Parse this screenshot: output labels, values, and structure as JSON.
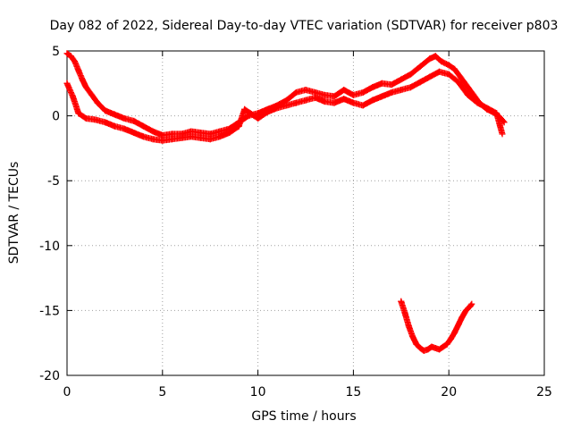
{
  "chart_data": {
    "type": "scatter",
    "title": "Day 082 of 2022, Sidereal Day-to-day VTEC variation (SDTVAR) for receiver p803",
    "xlabel": "GPS time / hours",
    "ylabel": "SDTVAR / TECUs",
    "xlim": [
      0,
      25
    ],
    "ylim": [
      -20,
      5
    ],
    "xticks": [
      0,
      5,
      10,
      15,
      20,
      25
    ],
    "yticks": [
      -20,
      -15,
      -10,
      -5,
      0,
      5
    ],
    "grid": true,
    "marker": "plus",
    "series": [
      {
        "name": "main-track-upper",
        "color": "#ff0000",
        "x": [
          0.0,
          0.2,
          0.4,
          0.6,
          0.8,
          1.0,
          1.3,
          1.6,
          2.0,
          2.5,
          3.0,
          3.5,
          4.0,
          4.5,
          5.0,
          5.5,
          6.0,
          6.5,
          7.0,
          7.5,
          8.0,
          8.5,
          9.0,
          9.5,
          10.0,
          10.5,
          11.0,
          11.5,
          12.0,
          12.5,
          13.0,
          13.5,
          14.0,
          14.5,
          15.0,
          15.5,
          16.0,
          16.5,
          17.0,
          17.5,
          18.0,
          18.5,
          19.0,
          19.3,
          19.6,
          20.0,
          20.3,
          20.6,
          21.0,
          21.3,
          21.6,
          22.0,
          22.3,
          22.6,
          22.9
        ],
        "y": [
          4.8,
          4.6,
          4.2,
          3.5,
          2.8,
          2.2,
          1.6,
          1.0,
          0.4,
          0.1,
          -0.2,
          -0.4,
          -0.8,
          -1.2,
          -1.5,
          -1.4,
          -1.4,
          -1.2,
          -1.3,
          -1.4,
          -1.2,
          -1.0,
          -0.5,
          0.0,
          0.2,
          0.5,
          0.8,
          1.2,
          1.8,
          2.0,
          1.8,
          1.6,
          1.5,
          2.0,
          1.6,
          1.8,
          2.2,
          2.5,
          2.4,
          2.8,
          3.2,
          3.8,
          4.4,
          4.6,
          4.2,
          3.9,
          3.6,
          3.0,
          2.2,
          1.6,
          1.0,
          0.5,
          0.3,
          0.0,
          -0.5
        ]
      },
      {
        "name": "main-track-lower",
        "color": "#ff0000",
        "x": [
          0.0,
          0.3,
          0.6,
          1.0,
          1.5,
          2.0,
          2.5,
          3.0,
          3.5,
          4.0,
          4.5,
          5.0,
          5.5,
          6.0,
          6.5,
          7.0,
          7.5,
          8.0,
          8.5,
          9.0,
          9.3,
          9.6,
          10.0,
          10.5,
          11.0,
          11.5,
          12.0,
          12.5,
          13.0,
          13.5,
          14.0,
          14.5,
          15.0,
          15.5,
          16.0,
          16.5,
          17.0,
          17.5,
          18.0,
          18.5,
          19.0,
          19.5,
          20.0,
          20.5,
          21.0,
          21.5,
          22.0,
          22.5,
          22.8
        ],
        "y": [
          2.5,
          1.5,
          0.2,
          -0.2,
          -0.3,
          -0.5,
          -0.8,
          -1.0,
          -1.3,
          -1.6,
          -1.8,
          -1.9,
          -1.8,
          -1.7,
          -1.6,
          -1.7,
          -1.8,
          -1.6,
          -1.3,
          -0.8,
          0.5,
          0.2,
          -0.2,
          0.3,
          0.6,
          0.8,
          1.0,
          1.2,
          1.4,
          1.1,
          1.0,
          1.3,
          1.0,
          0.8,
          1.2,
          1.5,
          1.8,
          2.0,
          2.2,
          2.6,
          3.0,
          3.4,
          3.2,
          2.6,
          1.6,
          1.0,
          0.6,
          0.2,
          -1.4
        ]
      },
      {
        "name": "anomaly-arc",
        "color": "#ff0000",
        "x": [
          17.5,
          17.7,
          17.9,
          18.1,
          18.3,
          18.5,
          18.7,
          18.9,
          19.1,
          19.3,
          19.5,
          19.7,
          19.9,
          20.1,
          20.3,
          20.5,
          20.7,
          20.9,
          21.1,
          21.2
        ],
        "y": [
          -14.3,
          -15.2,
          -16.2,
          -17.0,
          -17.6,
          -17.9,
          -18.1,
          -18.0,
          -17.8,
          -17.9,
          -18.0,
          -17.8,
          -17.6,
          -17.2,
          -16.7,
          -16.1,
          -15.5,
          -15.0,
          -14.7,
          -14.5
        ]
      }
    ]
  }
}
